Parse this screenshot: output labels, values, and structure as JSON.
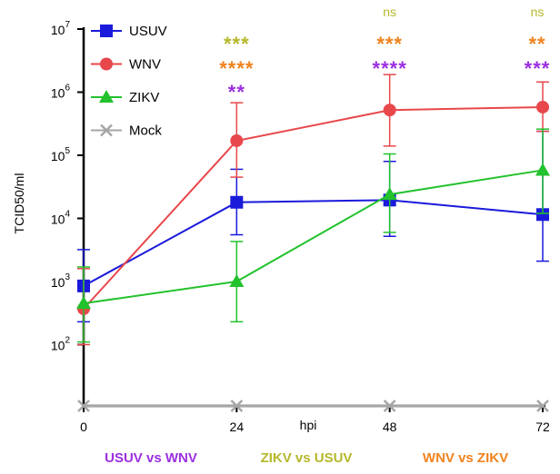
{
  "chart_data": {
    "type": "line",
    "xlabel": "hpi",
    "ylabel": "TCID50/ml",
    "x": [
      0,
      24,
      48,
      72
    ],
    "x_ticks": [
      "0",
      "24",
      "48",
      "72"
    ],
    "ylim": [
      10,
      10000000
    ],
    "yscale": "log",
    "y_ticks": [
      {
        "value": 100,
        "base": "10",
        "exp": "2"
      },
      {
        "value": 1000,
        "base": "10",
        "exp": "3"
      },
      {
        "value": 10000,
        "base": "10",
        "exp": "4"
      },
      {
        "value": 100000,
        "base": "10",
        "exp": "5"
      },
      {
        "value": 1000000,
        "base": "10",
        "exp": "6"
      },
      {
        "value": 10000000,
        "base": "10",
        "exp": "7"
      }
    ],
    "legend_position": "top-left",
    "series": [
      {
        "name": "USUV",
        "color": "#1a1adb",
        "marker": "square",
        "values": [
          850,
          18000,
          19500,
          11500
        ],
        "err_low": [
          230,
          5500,
          5200,
          2100
        ],
        "err_high": [
          3200,
          60000,
          80000,
          240000
        ]
      },
      {
        "name": "WNV",
        "color": "#e8474b",
        "marker": "circle",
        "values": [
          370,
          170000,
          520000,
          580000
        ],
        "err_low": [
          100,
          45000,
          140000,
          240000
        ],
        "err_high": [
          1600,
          680000,
          1900000,
          1450000
        ]
      },
      {
        "name": "ZIKV",
        "color": "#22c22c",
        "marker": "triangle",
        "values": [
          450,
          1000,
          24000,
          58000
        ],
        "err_low": [
          110,
          230,
          6000,
          12000
        ],
        "err_high": [
          1700,
          4300,
          105000,
          260000
        ]
      },
      {
        "name": "Mock",
        "color": "#a6a6a6",
        "marker": "x",
        "values": [
          35,
          35,
          35,
          35
        ],
        "err_low": [
          35,
          35,
          35,
          35
        ],
        "err_high": [
          35,
          35,
          35,
          35
        ]
      }
    ],
    "annotations": [
      {
        "x": 24,
        "row": 1,
        "text": "***",
        "color": "#b5b82a"
      },
      {
        "x": 24,
        "row": 2,
        "text": "****",
        "color": "#f0831f"
      },
      {
        "x": 24,
        "row": 3,
        "text": "**",
        "color": "#9b2fe0"
      },
      {
        "x": 48,
        "row": 0,
        "text": "ns",
        "color": "#b5b82a"
      },
      {
        "x": 48,
        "row": 1,
        "text": "***",
        "color": "#f0831f"
      },
      {
        "x": 48,
        "row": 2,
        "text": "****",
        "color": "#9b2fe0"
      },
      {
        "x": 72,
        "row": 0,
        "text": "ns",
        "color": "#b5b82a"
      },
      {
        "x": 72,
        "row": 1,
        "text": "**",
        "color": "#f0831f"
      },
      {
        "x": 72,
        "row": 2,
        "text": "***",
        "color": "#9b2fe0"
      }
    ],
    "comparison_key": [
      {
        "label": "USUV vs WNV",
        "color": "#9b2fe0"
      },
      {
        "label": "ZIKV vs USUV",
        "color": "#b5b82a"
      },
      {
        "label": "WNV vs ZIKV",
        "color": "#f0831f"
      }
    ]
  }
}
